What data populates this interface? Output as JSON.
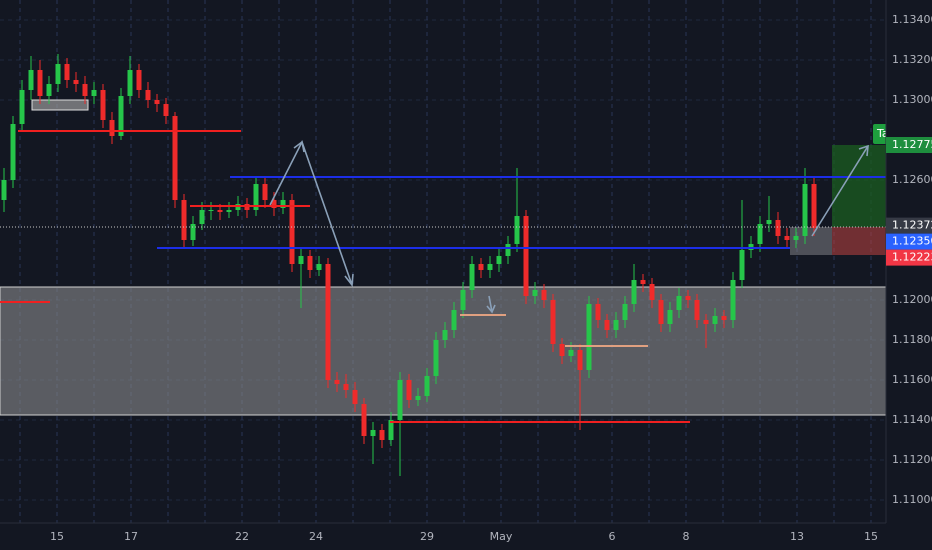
{
  "chart_data": {
    "type": "candlestick",
    "up_color": "#26c64a",
    "down_color": "#ef2b2b",
    "ylim": [
      1.10885,
      1.135
    ],
    "yticks": [
      {
        "value": 1.134,
        "label": "1.13400"
      },
      {
        "value": 1.132,
        "label": "1.13200"
      },
      {
        "value": 1.13,
        "label": "1.13000"
      },
      {
        "value": 1.126,
        "label": "1.12600"
      },
      {
        "value": 1.12,
        "label": "1.12000"
      },
      {
        "value": 1.118,
        "label": "1.11800"
      },
      {
        "value": 1.116,
        "label": "1.11600"
      },
      {
        "value": 1.114,
        "label": "1.11400"
      },
      {
        "value": 1.112,
        "label": "1.11200"
      },
      {
        "value": 1.11,
        "label": "1.11000"
      }
    ],
    "categories": [
      null,
      "15",
      null,
      "17",
      null,
      null,
      "22",
      null,
      "24",
      null,
      null,
      "29",
      null,
      "May",
      null,
      null,
      "6",
      null,
      "8",
      null,
      null,
      "13",
      null,
      "15"
    ],
    "grid": true,
    "price_markers": [
      {
        "value": 1.12775,
        "color": "#1e8e3e"
      },
      {
        "value": 1.12372,
        "color": "#363a45"
      },
      {
        "value": 1.1235,
        "label": "1.12350",
        "color": "#2962ff"
      },
      {
        "value": 1.12223,
        "color": "#f23645"
      }
    ],
    "annotation": "Ta",
    "ohlc": [
      [
        1.125,
        1.1266,
        1.1244,
        1.126
      ],
      [
        1.126,
        1.1292,
        1.1256,
        1.1288
      ],
      [
        1.1288,
        1.131,
        1.1284,
        1.1305
      ],
      [
        1.1305,
        1.1322,
        1.13,
        1.1315
      ],
      [
        1.1315,
        1.132,
        1.1298,
        1.1302
      ],
      [
        1.1302,
        1.1312,
        1.1298,
        1.1308
      ],
      [
        1.1308,
        1.1323,
        1.1304,
        1.1318
      ],
      [
        1.1318,
        1.1321,
        1.1306,
        1.131
      ],
      [
        1.131,
        1.1314,
        1.1304,
        1.1308
      ],
      [
        1.1308,
        1.1312,
        1.1298,
        1.1302
      ],
      [
        1.1302,
        1.1309,
        1.1298,
        1.1305
      ],
      [
        1.1305,
        1.1308,
        1.1286,
        1.129
      ],
      [
        1.129,
        1.1294,
        1.1278,
        1.1282
      ],
      [
        1.1282,
        1.1306,
        1.128,
        1.1302
      ],
      [
        1.1302,
        1.1322,
        1.1298,
        1.1315
      ],
      [
        1.1315,
        1.1318,
        1.1301,
        1.1305
      ],
      [
        1.1305,
        1.1309,
        1.1296,
        1.13
      ],
      [
        1.13,
        1.1303,
        1.1294,
        1.1298
      ],
      [
        1.1298,
        1.1301,
        1.1288,
        1.1292
      ],
      [
        1.1292,
        1.1294,
        1.1246,
        1.125
      ],
      [
        1.125,
        1.1253,
        1.1226,
        1.123
      ],
      [
        1.123,
        1.1242,
        1.1227,
        1.1238
      ],
      [
        1.1238,
        1.1249,
        1.1235,
        1.1245
      ],
      [
        1.1245,
        1.1249,
        1.124,
        1.1245
      ],
      [
        1.1245,
        1.1248,
        1.124,
        1.1244
      ],
      [
        1.1244,
        1.1249,
        1.1241,
        1.1245
      ],
      [
        1.1245,
        1.1252,
        1.1242,
        1.1248
      ],
      [
        1.1248,
        1.1251,
        1.1241,
        1.1245
      ],
      [
        1.1245,
        1.1262,
        1.1242,
        1.1258
      ],
      [
        1.1258,
        1.1261,
        1.1246,
        1.125
      ],
      [
        1.125,
        1.1254,
        1.1242,
        1.1246
      ],
      [
        1.1246,
        1.1254,
        1.1243,
        1.125
      ],
      [
        1.125,
        1.1253,
        1.1214,
        1.1218
      ],
      [
        1.1218,
        1.1226,
        1.1196,
        1.1222
      ],
      [
        1.1222,
        1.1225,
        1.1211,
        1.1215
      ],
      [
        1.1215,
        1.1222,
        1.1212,
        1.1218
      ],
      [
        1.1218,
        1.1221,
        1.1156,
        1.116
      ],
      [
        1.116,
        1.1164,
        1.1154,
        1.1158
      ],
      [
        1.1158,
        1.1163,
        1.1151,
        1.1155
      ],
      [
        1.1155,
        1.1159,
        1.1144,
        1.1148
      ],
      [
        1.1148,
        1.1151,
        1.1128,
        1.1132
      ],
      [
        1.1132,
        1.1139,
        1.1118,
        1.1135
      ],
      [
        1.1135,
        1.1138,
        1.1126,
        1.113
      ],
      [
        1.113,
        1.1144,
        1.1127,
        1.114
      ],
      [
        1.114,
        1.1164,
        1.1112,
        1.116
      ],
      [
        1.116,
        1.1163,
        1.1146,
        1.115
      ],
      [
        1.115,
        1.1156,
        1.1147,
        1.1152
      ],
      [
        1.1152,
        1.1166,
        1.1149,
        1.1162
      ],
      [
        1.1162,
        1.1184,
        1.1158,
        1.118
      ],
      [
        1.118,
        1.1189,
        1.1176,
        1.1185
      ],
      [
        1.1185,
        1.1199,
        1.1181,
        1.1195
      ],
      [
        1.1195,
        1.1209,
        1.1191,
        1.1205
      ],
      [
        1.1205,
        1.1222,
        1.1201,
        1.1218
      ],
      [
        1.1218,
        1.1221,
        1.1211,
        1.1215
      ],
      [
        1.1215,
        1.1222,
        1.1211,
        1.1218
      ],
      [
        1.1218,
        1.1226,
        1.1214,
        1.1222
      ],
      [
        1.1222,
        1.1232,
        1.1218,
        1.1228
      ],
      [
        1.1228,
        1.1266,
        1.1224,
        1.1242
      ],
      [
        1.1242,
        1.1245,
        1.1198,
        1.1202
      ],
      [
        1.1202,
        1.1209,
        1.1198,
        1.1205
      ],
      [
        1.1205,
        1.1208,
        1.1196,
        1.12
      ],
      [
        1.12,
        1.1203,
        1.1174,
        1.1178
      ],
      [
        1.1178,
        1.1181,
        1.1168,
        1.1172
      ],
      [
        1.1172,
        1.1179,
        1.1169,
        1.1175
      ],
      [
        1.1175,
        1.1178,
        1.1135,
        1.1165
      ],
      [
        1.1165,
        1.1202,
        1.1161,
        1.1198
      ],
      [
        1.1198,
        1.1201,
        1.1186,
        1.119
      ],
      [
        1.119,
        1.1193,
        1.1181,
        1.1185
      ],
      [
        1.1185,
        1.1194,
        1.1181,
        1.119
      ],
      [
        1.119,
        1.1202,
        1.1186,
        1.1198
      ],
      [
        1.1198,
        1.1218,
        1.1194,
        1.121
      ],
      [
        1.121,
        1.1213,
        1.1204,
        1.1208
      ],
      [
        1.1208,
        1.1211,
        1.1196,
        1.12
      ],
      [
        1.12,
        1.1203,
        1.1184,
        1.1188
      ],
      [
        1.1188,
        1.1199,
        1.1184,
        1.1195
      ],
      [
        1.1195,
        1.1206,
        1.1191,
        1.1202
      ],
      [
        1.1202,
        1.1205,
        1.1196,
        1.12
      ],
      [
        1.12,
        1.1203,
        1.1186,
        1.119
      ],
      [
        1.119,
        1.1193,
        1.1176,
        1.1188
      ],
      [
        1.1188,
        1.1196,
        1.1184,
        1.1192
      ],
      [
        1.1192,
        1.1195,
        1.1186,
        1.119
      ],
      [
        1.119,
        1.1214,
        1.1186,
        1.121
      ],
      [
        1.121,
        1.125,
        1.1206,
        1.1225
      ],
      [
        1.1225,
        1.1232,
        1.1221,
        1.1228
      ],
      [
        1.1228,
        1.1242,
        1.1224,
        1.1238
      ],
      [
        1.1238,
        1.1252,
        1.1234,
        1.124
      ],
      [
        1.124,
        1.1244,
        1.1228,
        1.1232
      ],
      [
        1.1232,
        1.1236,
        1.1226,
        1.123
      ],
      [
        1.123,
        1.1236,
        1.1226,
        1.1232
      ],
      [
        1.1232,
        1.1266,
        1.1228,
        1.1258
      ],
      [
        1.1258,
        1.1262,
        1.1232,
        1.1236
      ]
    ]
  }
}
